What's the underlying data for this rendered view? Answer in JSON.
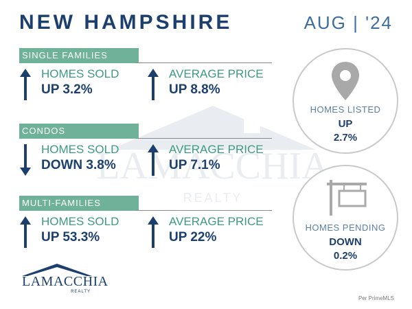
{
  "header": {
    "title": "NEW HAMPSHIRE",
    "date": "AUG | '24"
  },
  "watermark": {
    "text": "LAMACCHIA",
    "sub": "REALTY"
  },
  "sections": [
    {
      "label": "SINGLE FAMILIES",
      "sold_label": "HOMES SOLD",
      "sold_value": "UP 3.2%",
      "sold_dir": "up",
      "price_label": "AVERAGE PRICE",
      "price_value": "UP 8.8%",
      "price_dir": "up"
    },
    {
      "label": "CONDOS",
      "sold_label": "HOMES SOLD",
      "sold_value": "DOWN 3.8%",
      "sold_dir": "down",
      "price_label": "AVERAGE PRICE",
      "price_value": "UP 7.1%",
      "price_dir": "up"
    },
    {
      "label": "MULTI-FAMILIES",
      "sold_label": "HOMES SOLD",
      "sold_value": "UP 53.3%",
      "sold_dir": "up",
      "price_label": "AVERAGE PRICE",
      "price_value": "UP 22%",
      "price_dir": "up"
    }
  ],
  "listed": {
    "label": "HOMES LISTED",
    "direction": "UP",
    "value": "2.7%",
    "icon": "map-pin-icon"
  },
  "pending": {
    "label": "HOMES PENDING",
    "direction": "DOWN",
    "value": "0.2%",
    "icon": "for-sale-sign-icon"
  },
  "logo": {
    "text": "LAMACCHIA",
    "sub": "REALTY"
  },
  "source": "Per PrimeMLS",
  "colors": {
    "navy": "#1c3f6e",
    "green": "#6fb29a",
    "teal_text": "#3d9a80"
  }
}
